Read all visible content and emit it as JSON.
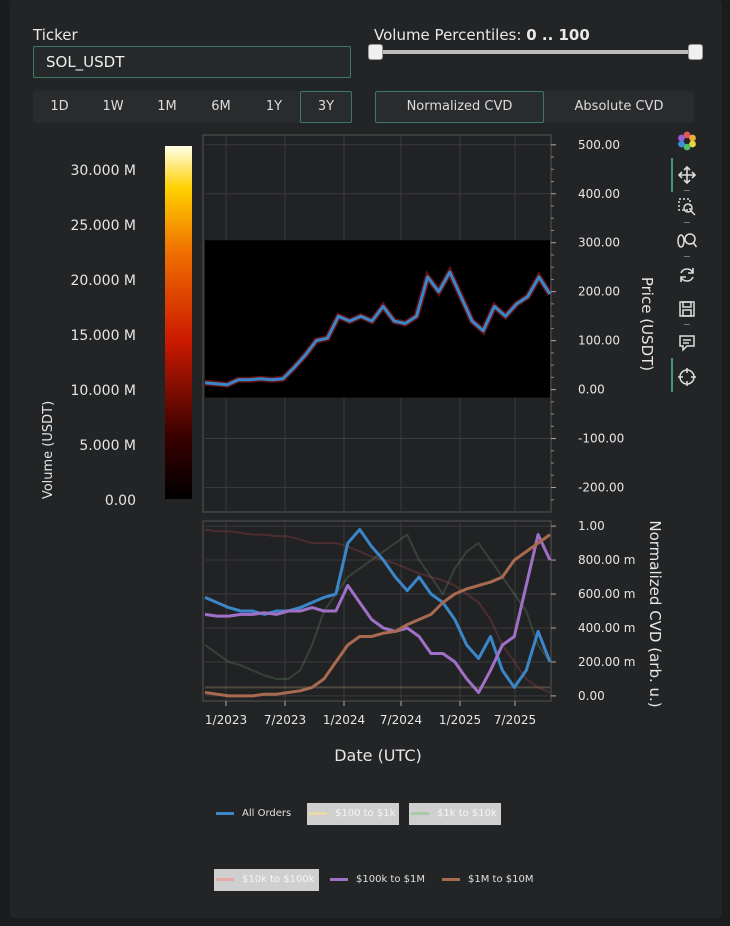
{
  "ticker": {
    "label": "Ticker",
    "value": "SOL_USDT"
  },
  "volume_percentiles": {
    "label": "Volume Percentiles:",
    "range_text": "0 .. 100",
    "low": 0,
    "high": 100
  },
  "timeframes": [
    {
      "label": "1D",
      "active": false
    },
    {
      "label": "1W",
      "active": false
    },
    {
      "label": "1M",
      "active": false
    },
    {
      "label": "6M",
      "active": false
    },
    {
      "label": "1Y",
      "active": false
    },
    {
      "label": "3Y",
      "active": true
    }
  ],
  "cvd_modes": [
    {
      "label": "Normalized CVD",
      "active": true
    },
    {
      "label": "Absolute CVD",
      "active": false
    }
  ],
  "toolbar": [
    {
      "name": "bokeh-logo-icon"
    },
    {
      "name": "pan-icon"
    },
    {
      "name": "box-zoom-icon"
    },
    {
      "name": "wheel-zoom-icon"
    },
    {
      "name": "reset-icon"
    },
    {
      "name": "save-icon"
    },
    {
      "name": "hover-icon"
    },
    {
      "name": "crosshair-icon"
    }
  ],
  "colorbar": {
    "title": "Volume (USDT)",
    "ticks": [
      "30.000 M",
      "25.000 M",
      "20.000 M",
      "15.000 M",
      "10.000 M",
      "5.000 M",
      "0.00"
    ]
  },
  "chart_data": [
    {
      "type": "line",
      "ylabel": "Price (USDT)",
      "ylim": [
        -250,
        520
      ],
      "y_ticks": [
        "500.00",
        "400.00",
        "300.00",
        "200.00",
        "100.00",
        "0.00",
        "-100.00",
        "-200.00"
      ],
      "y_tick_values": [
        500,
        400,
        300,
        200,
        100,
        0,
        -100,
        -200
      ],
      "heatmap_band": [
        0,
        305
      ],
      "series": [
        {
          "color": "#3a86c8",
          "x": [
            "2022-11",
            "2022-12",
            "2023-01",
            "2023-03",
            "2023-05",
            "2023-07",
            "2023-09",
            "2023-10",
            "2023-11",
            "2023-12",
            "2024-01",
            "2024-02",
            "2024-03",
            "2024-04",
            "2024-05",
            "2024-06",
            "2024-07",
            "2024-08",
            "2024-09",
            "2024-10",
            "2024-11",
            "2024-12",
            "2025-01",
            "2025-02",
            "2025-03",
            "2025-04",
            "2025-05",
            "2025-06",
            "2025-07",
            "2025-08",
            "2025-09",
            "2025-10"
          ],
          "y": [
            14,
            12,
            10,
            20,
            20,
            22,
            20,
            22,
            45,
            70,
            100,
            105,
            150,
            140,
            150,
            140,
            170,
            140,
            135,
            150,
            230,
            200,
            240,
            190,
            140,
            120,
            170,
            150,
            175,
            190,
            230,
            195
          ]
        }
      ]
    },
    {
      "type": "line",
      "ylabel": "Normalized CVD (arb. u.)",
      "xlabel": "Date (UTC)",
      "ylim": [
        -0.03,
        1.03
      ],
      "y_ticks": [
        "1.00",
        "800.00 m",
        "600.00 m",
        "400.00 m",
        "200.00 m",
        "0.00"
      ],
      "y_tick_values": [
        1,
        0.8,
        0.6,
        0.4,
        0.2,
        0
      ],
      "x_ticks": [
        "1/2023",
        "7/2023",
        "1/2024",
        "7/2024",
        "1/2025",
        "7/2025"
      ],
      "series": [
        {
          "name": "All Orders",
          "color": "#3a86c8",
          "y": [
            0.58,
            0.55,
            0.52,
            0.5,
            0.5,
            0.48,
            0.5,
            0.5,
            0.52,
            0.55,
            0.58,
            0.6,
            0.9,
            0.98,
            0.88,
            0.8,
            0.7,
            0.62,
            0.7,
            0.6,
            0.55,
            0.45,
            0.3,
            0.22,
            0.35,
            0.15,
            0.05,
            0.15,
            0.38,
            0.2
          ]
        },
        {
          "name": "$100 to $1k",
          "color": "#b9aa7a",
          "muted": true,
          "y": [
            0.05,
            0.05,
            0.05,
            0.05,
            0.05,
            0.05,
            0.05,
            0.05,
            0.05,
            0.05,
            0.05,
            0.05,
            0.05,
            0.05,
            0.05,
            0.05,
            0.05,
            0.05,
            0.05,
            0.05,
            0.05,
            0.05,
            0.05,
            0.05,
            0.05,
            0.05,
            0.05,
            0.05,
            0.05,
            0.05
          ]
        },
        {
          "name": "$1k to $10k",
          "color": "#6b8a6b",
          "muted": true,
          "y": [
            0.3,
            0.25,
            0.2,
            0.18,
            0.15,
            0.12,
            0.1,
            0.1,
            0.15,
            0.3,
            0.5,
            0.6,
            0.7,
            0.75,
            0.8,
            0.85,
            0.9,
            0.95,
            0.8,
            0.7,
            0.6,
            0.75,
            0.85,
            0.9,
            0.8,
            0.7,
            0.6,
            0.5,
            0.3,
            0.2
          ]
        },
        {
          "name": "$10k to $100k",
          "color": "#b04848",
          "muted": true,
          "y": [
            0.98,
            0.97,
            0.97,
            0.96,
            0.95,
            0.95,
            0.94,
            0.94,
            0.92,
            0.9,
            0.9,
            0.9,
            0.88,
            0.85,
            0.82,
            0.8,
            0.78,
            0.75,
            0.72,
            0.7,
            0.68,
            0.65,
            0.6,
            0.55,
            0.45,
            0.3,
            0.2,
            0.1,
            0.05,
            0.02
          ]
        },
        {
          "name": "$100k to $1M",
          "color": "#a070c8",
          "y": [
            0.48,
            0.47,
            0.47,
            0.48,
            0.48,
            0.49,
            0.48,
            0.5,
            0.5,
            0.52,
            0.5,
            0.5,
            0.65,
            0.55,
            0.45,
            0.4,
            0.38,
            0.4,
            0.35,
            0.25,
            0.25,
            0.2,
            0.1,
            0.02,
            0.15,
            0.3,
            0.35,
            0.65,
            0.95,
            0.8
          ]
        },
        {
          "name": "$1M to $10M",
          "color": "#a86a50",
          "y": [
            0.02,
            0.01,
            0.0,
            0.0,
            0.0,
            0.01,
            0.01,
            0.02,
            0.03,
            0.05,
            0.1,
            0.2,
            0.3,
            0.35,
            0.35,
            0.37,
            0.38,
            0.42,
            0.45,
            0.48,
            0.55,
            0.6,
            0.63,
            0.65,
            0.67,
            0.7,
            0.8,
            0.85,
            0.9,
            0.95
          ]
        }
      ]
    }
  ]
}
